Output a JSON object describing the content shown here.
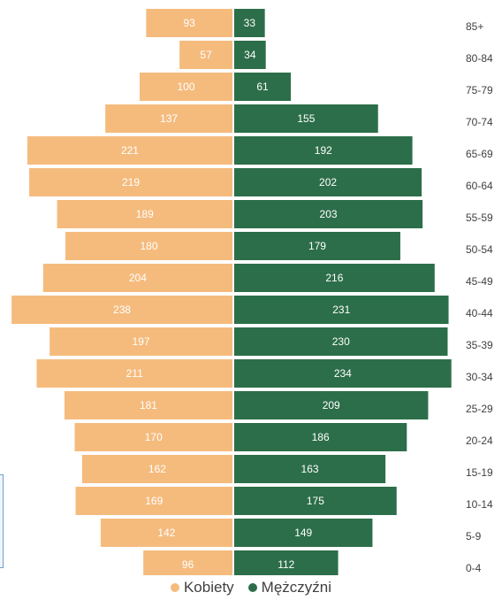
{
  "chart_data": {
    "type": "bar",
    "orientation": "horizontal-population-pyramid",
    "categories": [
      "85+",
      "80-84",
      "75-79",
      "70-74",
      "65-69",
      "60-64",
      "55-59",
      "50-54",
      "45-49",
      "40-44",
      "35-39",
      "30-34",
      "25-29",
      "20-24",
      "15-19",
      "10-14",
      "5-9",
      "0-4"
    ],
    "series": [
      {
        "name": "Kobiety",
        "color": "#f5bb7d",
        "label_color": "#ffffff",
        "values": [
          93,
          57,
          100,
          137,
          221,
          219,
          189,
          180,
          204,
          238,
          197,
          211,
          181,
          170,
          162,
          169,
          142,
          96
        ]
      },
      {
        "name": "Mężczyźni",
        "color": "#2c6e49",
        "label_color": "#ffffff",
        "values": [
          33,
          34,
          61,
          155,
          192,
          202,
          203,
          179,
          216,
          231,
          230,
          234,
          209,
          186,
          163,
          175,
          149,
          112
        ]
      }
    ],
    "xlim": [
      0,
      240
    ],
    "legend_position": "bottom",
    "grid": false
  },
  "sidebox": {
    "glyph": ")"
  }
}
